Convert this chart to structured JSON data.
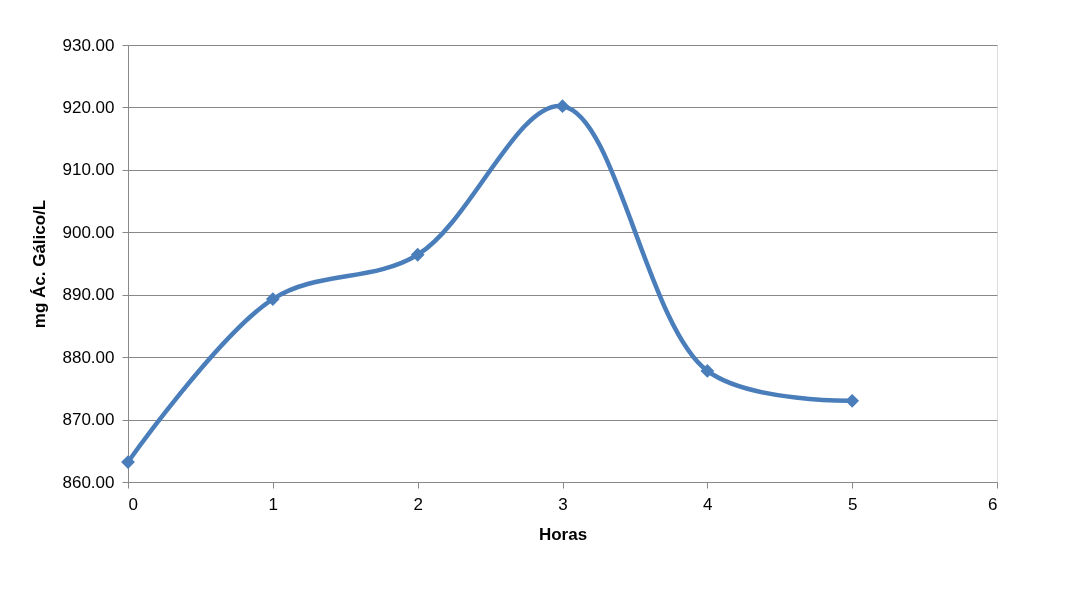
{
  "chart_data": {
    "type": "line",
    "xlabel": "Horas",
    "ylabel": "mg Ác. Gálico/L",
    "x": [
      0,
      1,
      2,
      3,
      4,
      5
    ],
    "series": [
      {
        "color": "#4a7ebb",
        "values": [
          863.2,
          889.3,
          896.4,
          920.2,
          877.8,
          873.0
        ]
      }
    ],
    "xlim": [
      0,
      6
    ],
    "xticks": [
      0,
      1,
      2,
      3,
      4,
      5,
      6
    ],
    "ylim": [
      860,
      930
    ],
    "yticks": [
      {
        "value": 860,
        "label": "860.00"
      },
      {
        "value": 870,
        "label": "870.00"
      },
      {
        "value": 880,
        "label": "880.00"
      },
      {
        "value": 890,
        "label": "890.00"
      },
      {
        "value": 900,
        "label": "900.00"
      },
      {
        "value": 910,
        "label": "910.00"
      },
      {
        "value": 920,
        "label": "920.00"
      },
      {
        "value": 930,
        "label": "930.00"
      }
    ],
    "grid": "y",
    "marker": "diamond",
    "line_style": "solid"
  }
}
